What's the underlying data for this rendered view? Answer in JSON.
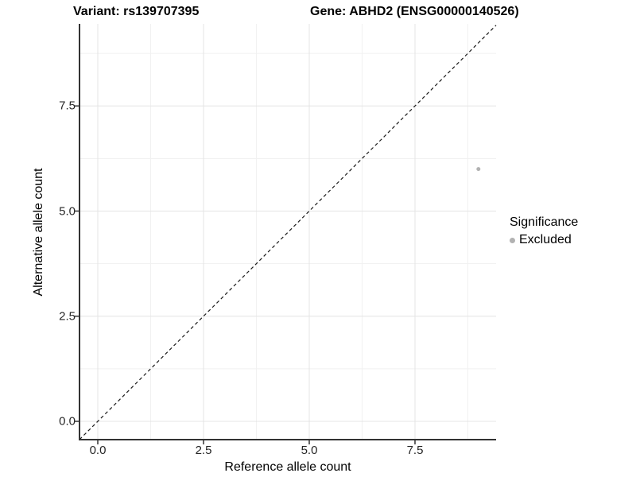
{
  "titles": {
    "variant": "Variant: rs139707395",
    "gene": "Gene: ABHD2 (ENSG00000140526)"
  },
  "legend": {
    "title": "Significance",
    "items": [
      {
        "label": "Excluded",
        "color": "#b2b2b2"
      }
    ]
  },
  "chart_data": {
    "type": "scatter",
    "title": "Variant: rs139707395   Gene: ABHD2 (ENSG00000140526)",
    "xlabel": "Reference allele count",
    "ylabel": "Alternative allele count",
    "x_ticks": [
      0,
      2.5,
      5,
      7.5
    ],
    "y_ticks": [
      0,
      2.5,
      5,
      7.5
    ],
    "x_tick_labels": [
      "0.0",
      "2.5",
      "5.0",
      "7.5"
    ],
    "y_tick_labels": [
      "0.0",
      "2.5",
      "5.0",
      "7.5"
    ],
    "xlim": [
      -0.45,
      9.45
    ],
    "ylim": [
      -0.45,
      9.45
    ],
    "grid": true,
    "minor_grid": true,
    "legend_position": "right",
    "series": [
      {
        "name": "Excluded",
        "color": "#b2b2b2",
        "points": [
          {
            "x": 9,
            "y": 6
          }
        ]
      }
    ],
    "identity_line": {
      "style": "dashed",
      "slope": 1,
      "intercept": 0
    }
  }
}
